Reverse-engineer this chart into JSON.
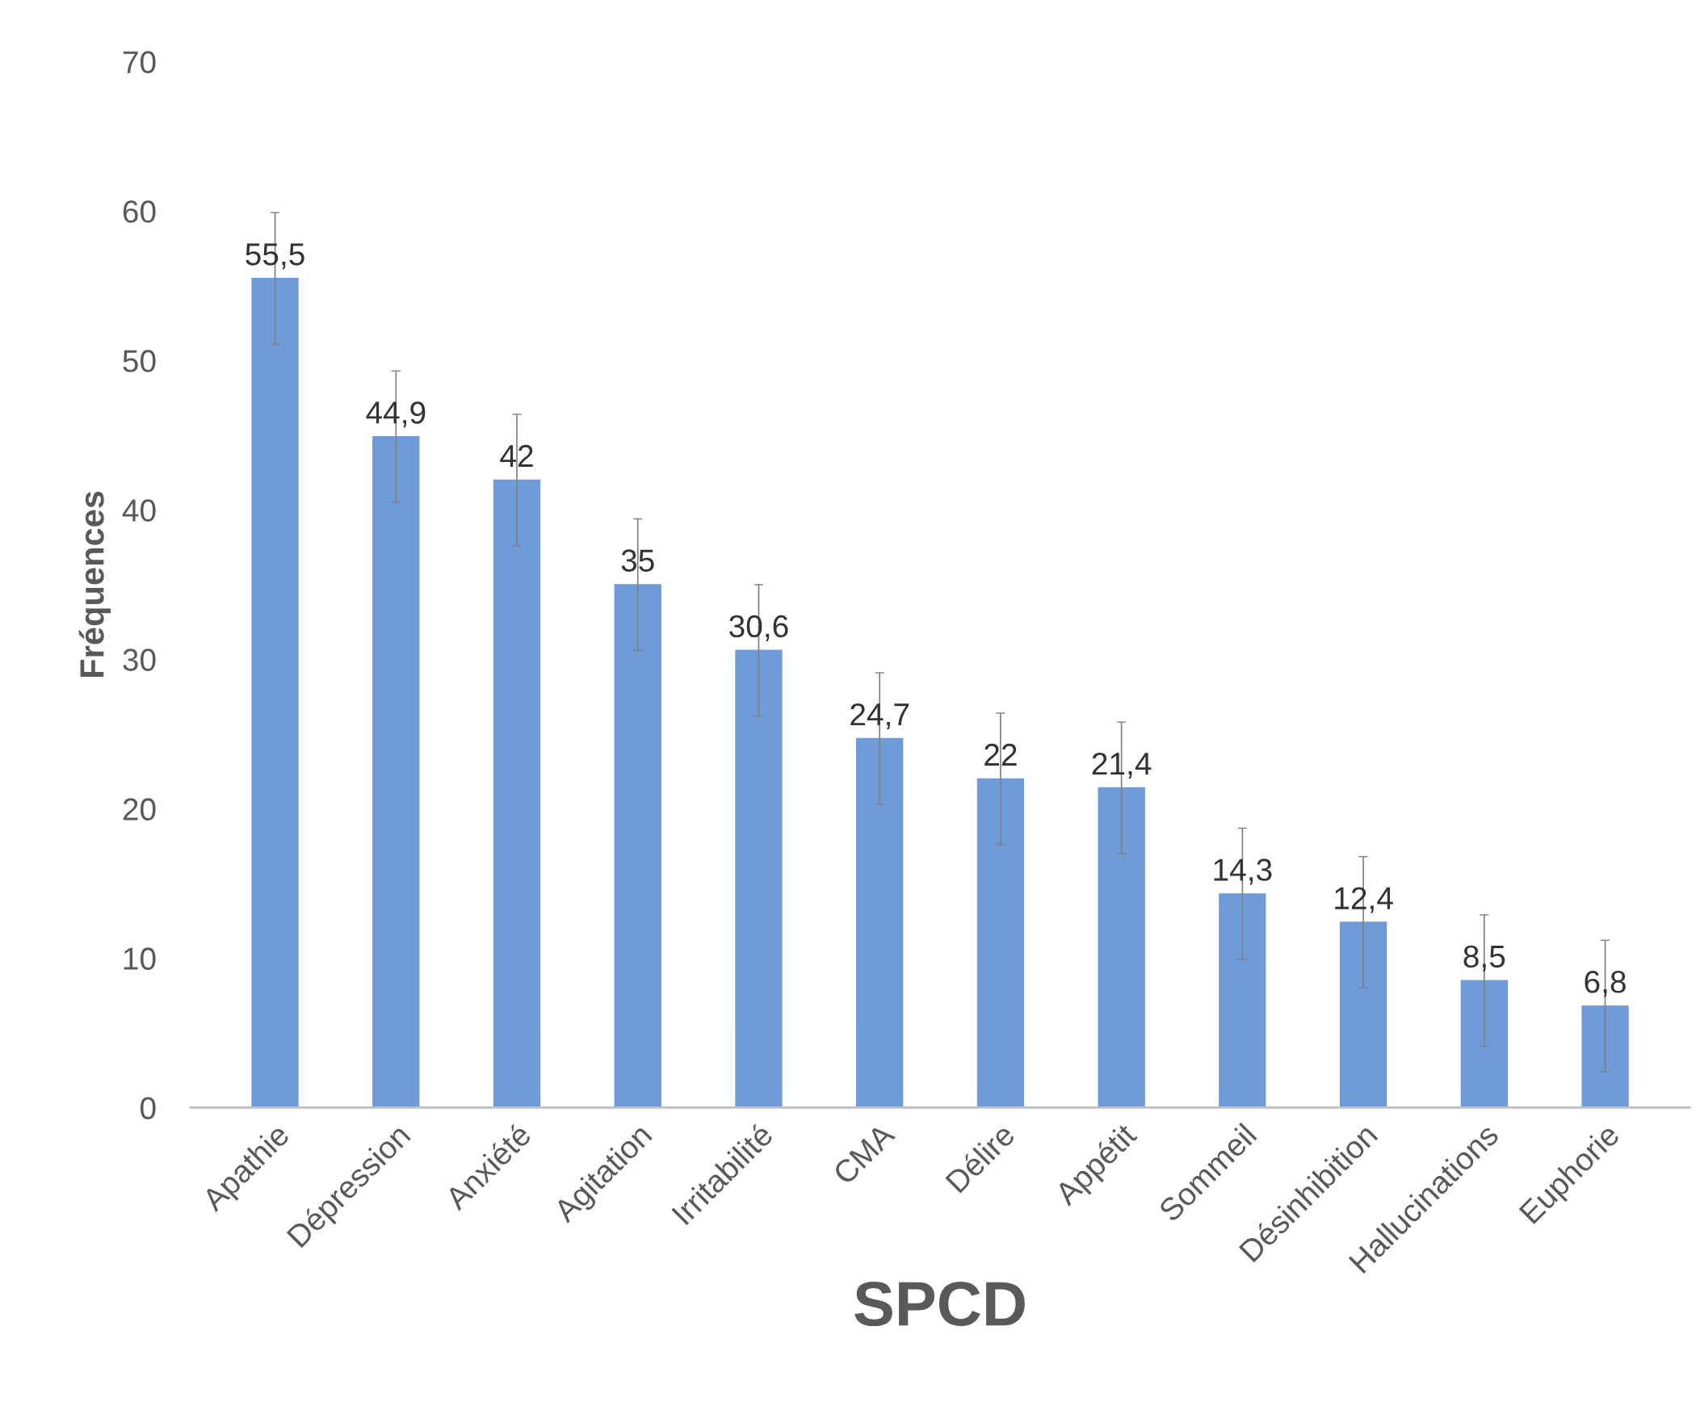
{
  "chart_data": {
    "type": "bar",
    "xlabel": "SPCD",
    "ylabel": "Fréquences",
    "categories": [
      "Apathie",
      "Dépression",
      "Anxiété",
      "Agitation",
      "Irritabilité",
      "CMA",
      "Délire",
      "Appétit",
      "Sommeil",
      "Désinhibition",
      "Hallucinations",
      "Euphorie"
    ],
    "values": [
      55.5,
      44.9,
      42,
      35,
      30.6,
      24.7,
      22,
      21.4,
      14.3,
      12.4,
      8.5,
      6.8
    ],
    "value_labels": [
      "55,5",
      "44,9",
      "42",
      "35",
      "30,6",
      "24,7",
      "22",
      "21,4",
      "14,3",
      "12,4",
      "8,5",
      "6,8"
    ],
    "errors": [
      4.4,
      4.4,
      4.4,
      4.4,
      4.4,
      4.4,
      4.4,
      4.4,
      4.4,
      4.4,
      4.4,
      4.4
    ],
    "color": "#6f9bd8",
    "ylim": [
      0,
      70
    ],
    "yticks": [
      0,
      10,
      20,
      30,
      40,
      50,
      60,
      70
    ],
    "grid": false,
    "legend": false
  }
}
